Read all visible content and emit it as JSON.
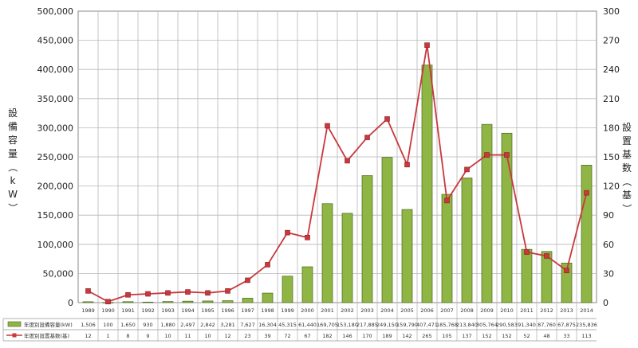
{
  "chart_data": {
    "type": "bar",
    "categories": [
      "1989",
      "1990",
      "1991",
      "1992",
      "1993",
      "1994",
      "1995",
      "1996",
      "1997",
      "1998",
      "1999",
      "2000",
      "2001",
      "2002",
      "2003",
      "2004",
      "2005",
      "2006",
      "2007",
      "2008",
      "2009",
      "2010",
      "2011",
      "2012",
      "2013",
      "2014"
    ],
    "ylabel": "設備容量（kW）",
    "y2label": "設置基数（基）",
    "ylim": [
      0,
      500000
    ],
    "y2lim": [
      0,
      300
    ],
    "yticks": [
      "0",
      "50,000",
      "100,000",
      "150,000",
      "200,000",
      "250,000",
      "300,000",
      "350,000",
      "400,000",
      "450,000",
      "500,000"
    ],
    "y2ticks": [
      "0",
      "30",
      "60",
      "90",
      "120",
      "150",
      "180",
      "210",
      "240",
      "270",
      "300"
    ],
    "series": [
      {
        "name": "年度別設備容量(kW)",
        "type": "bar",
        "axis": "left",
        "color": "#8fb545",
        "values": [
          1506,
          100,
          1650,
          930,
          1880,
          2497,
          2842,
          3281,
          7627,
          16304,
          45315,
          61440,
          169705,
          153180,
          217885,
          249150,
          159790,
          407471,
          185768,
          213840,
          305764,
          290583,
          91340,
          87760,
          67875,
          235836
        ],
        "labels": [
          "1,506",
          "100",
          "1,650",
          "930",
          "1,880",
          "2,497",
          "2,842",
          "3,281",
          "7,627",
          "16,304",
          "45,315",
          "61,440",
          "169,705",
          "153,180",
          "217,885",
          "249,150",
          "159,790",
          "407,471",
          "185,768",
          "213,840",
          "305,764",
          "290,583",
          "91,340",
          "87,760",
          "67,875",
          "235,836"
        ]
      },
      {
        "name": "年度別設置基数(基)",
        "type": "line",
        "axis": "right",
        "color": "#c8383d",
        "values": [
          12,
          1,
          8,
          9,
          10,
          11,
          10,
          12,
          23,
          39,
          72,
          67,
          182,
          146,
          170,
          189,
          142,
          265,
          105,
          137,
          152,
          152,
          52,
          48,
          33,
          113
        ],
        "labels": [
          "12",
          "1",
          "8",
          "9",
          "10",
          "11",
          "10",
          "12",
          "23",
          "39",
          "72",
          "67",
          "182",
          "146",
          "170",
          "189",
          "142",
          "265",
          "105",
          "137",
          "152",
          "152",
          "52",
          "48",
          "33",
          "113"
        ]
      }
    ],
    "grid": true,
    "legend": "bottom-left table",
    "colors": {
      "bar": "#8fb545",
      "bar_edge": "#4a6a1a",
      "line": "#c8383d",
      "grid": "#b8b8b8"
    }
  }
}
